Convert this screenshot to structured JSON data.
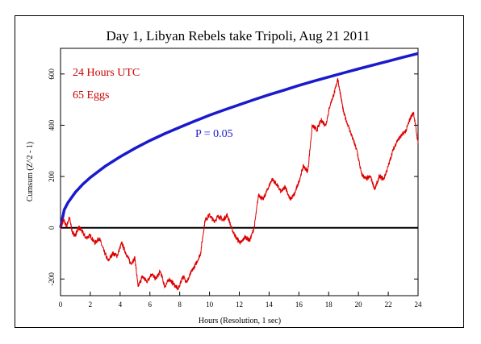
{
  "chart_data": {
    "type": "line",
    "title": "Day 1, Libyan Rebels take Tripoli, Aug 21 2011",
    "xlabel": "Hours (Resolution, 1 sec)",
    "ylabel": "Cumsum (Z^2 - 1)",
    "xlim": [
      0,
      24
    ],
    "ylim": [
      -265,
      700
    ],
    "x_ticks": [
      0,
      2,
      4,
      6,
      8,
      10,
      12,
      14,
      16,
      18,
      20,
      22,
      24
    ],
    "y_ticks": [
      -200,
      0,
      200,
      400,
      600
    ],
    "grid": false,
    "annotations": {
      "hours": "24 Hours UTC",
      "eggs": "65 Eggs",
      "p_label": "P = 0.05"
    },
    "colors": {
      "cumsum": "#dd0000",
      "envelope": "#1a1acc",
      "baseline": "#000000",
      "annotation": "#cc0000"
    },
    "baseline": 0,
    "envelope_p05": {
      "x": [
        0,
        0.25,
        0.5,
        1,
        1.5,
        2,
        3,
        4,
        5,
        6,
        7,
        8,
        9,
        10,
        11,
        12,
        13,
        14,
        15,
        16,
        17,
        18,
        19,
        20,
        21,
        22,
        23,
        24
      ],
      "y": [
        0,
        70,
        98,
        139,
        170,
        196,
        240,
        277,
        310,
        340,
        367,
        392,
        416,
        439,
        460,
        480,
        500,
        519,
        537,
        555,
        572,
        588,
        604,
        620,
        635,
        650,
        665,
        680
      ]
    },
    "cumsum": {
      "x": [
        0,
        0.2,
        0.4,
        0.6,
        0.8,
        1.0,
        1.2,
        1.4,
        1.7,
        2.0,
        2.3,
        2.6,
        2.9,
        3.2,
        3.5,
        3.8,
        4.1,
        4.4,
        4.7,
        5.0,
        5.2,
        5.5,
        5.8,
        6.1,
        6.4,
        6.7,
        7.0,
        7.3,
        7.6,
        7.9,
        8.2,
        8.5,
        8.8,
        9.1,
        9.4,
        9.7,
        10.0,
        10.3,
        10.6,
        10.9,
        11.2,
        11.5,
        11.8,
        12.1,
        12.4,
        12.7,
        13.0,
        13.3,
        13.6,
        13.9,
        14.2,
        14.5,
        14.8,
        15.1,
        15.4,
        15.7,
        16.0,
        16.3,
        16.6,
        16.9,
        17.2,
        17.5,
        17.8,
        18.1,
        18.4,
        18.6,
        18.8,
        19.0,
        19.3,
        19.6,
        19.9,
        20.2,
        20.5,
        20.8,
        21.1,
        21.4,
        21.7,
        22.0,
        22.3,
        22.6,
        22.9,
        23.2,
        23.5,
        23.7,
        24.0
      ],
      "y": [
        0,
        30,
        5,
        40,
        -20,
        -30,
        0,
        -10,
        -40,
        -30,
        -60,
        -40,
        -90,
        -130,
        -100,
        -110,
        -60,
        -100,
        -140,
        -120,
        -230,
        -190,
        -210,
        -180,
        -200,
        -170,
        -230,
        -200,
        -220,
        -240,
        -190,
        -210,
        -170,
        -140,
        -100,
        30,
        50,
        25,
        45,
        30,
        50,
        -5,
        -40,
        -60,
        -35,
        -50,
        0,
        130,
        110,
        150,
        190,
        170,
        140,
        160,
        110,
        130,
        180,
        240,
        220,
        400,
        380,
        420,
        400,
        480,
        530,
        580,
        520,
        450,
        400,
        350,
        300,
        210,
        190,
        200,
        150,
        200,
        190,
        240,
        300,
        340,
        360,
        380,
        430,
        450,
        330
      ]
    }
  }
}
